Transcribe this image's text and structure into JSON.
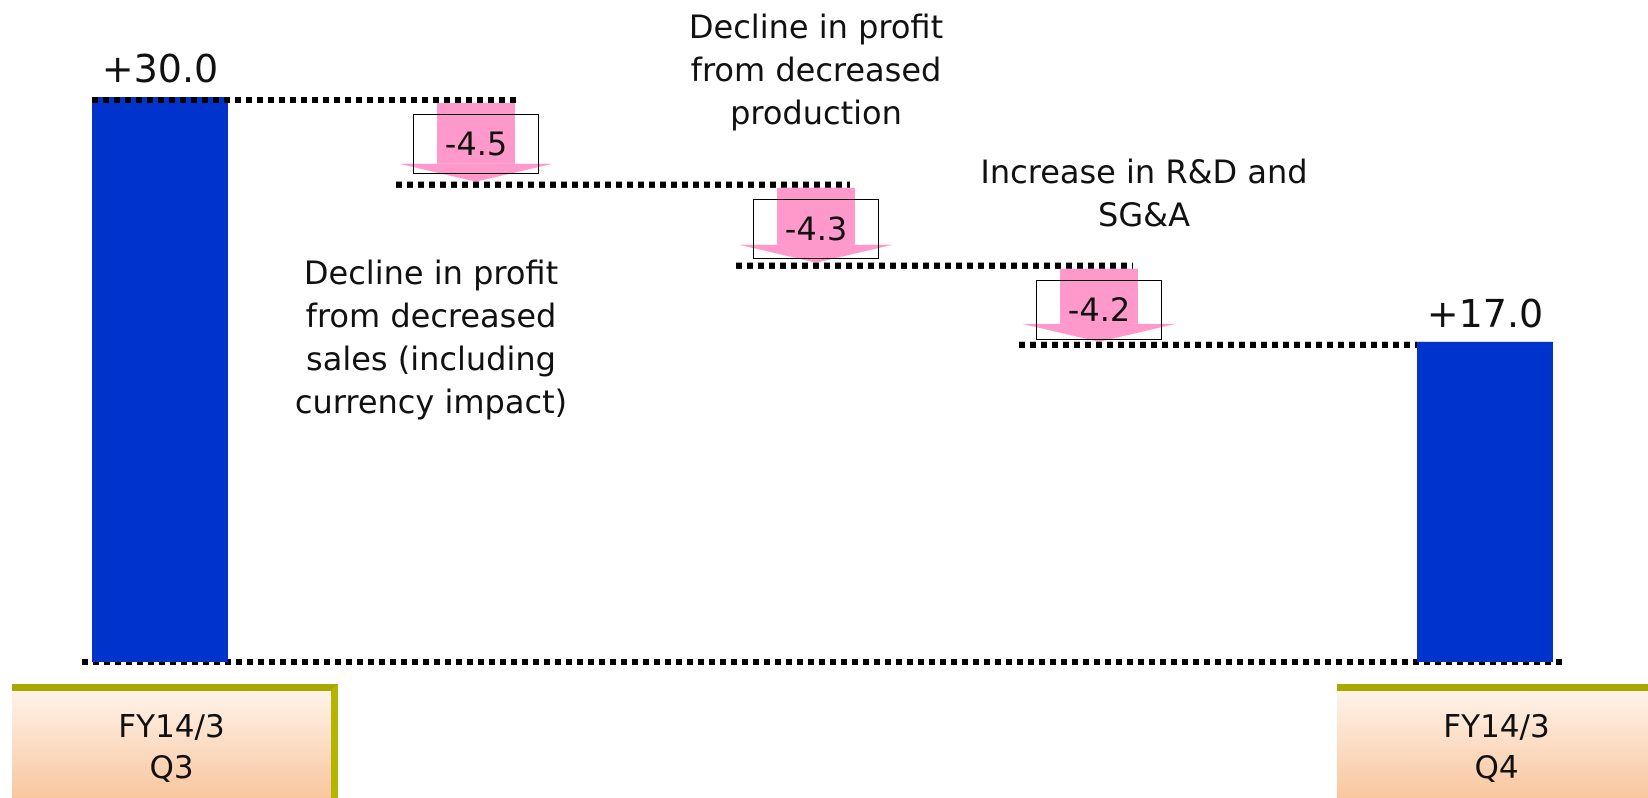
{
  "chart_data": {
    "type": "waterfall",
    "categories": [
      "FY14/3 Q3",
      "Decline in profit from decreased sales (including currency impact)",
      "Decline in profit from decreased production",
      "Increase in R&D and SG&A",
      "FY14/3 Q4"
    ],
    "values": [
      30,
      -4.5,
      -4.3,
      -4.2,
      17
    ],
    "value_labels": [
      "+30.0",
      "-4.5",
      "-4.3",
      "-4.2",
      "+17.0"
    ],
    "total_color": "#0033cc",
    "step_color": "#ff99cc"
  }
}
